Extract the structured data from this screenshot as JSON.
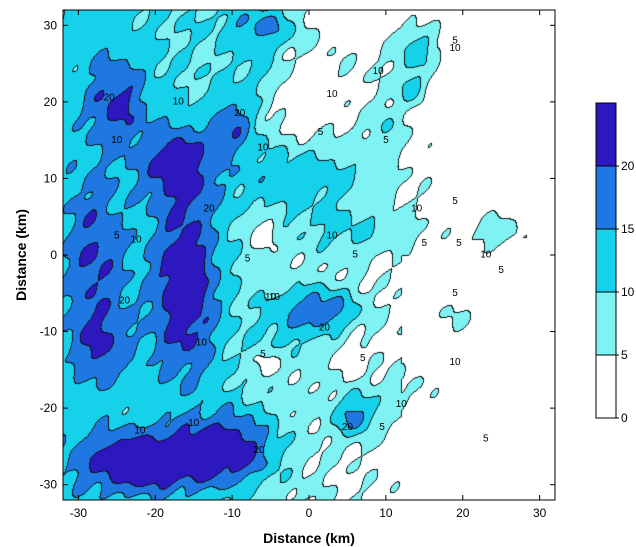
{
  "chart_data": {
    "type": "heatmap",
    "title": "",
    "xlabel": "Distance (km)",
    "ylabel": "Distance (km)",
    "xlim": [
      -32,
      32
    ],
    "ylim": [
      -32,
      32
    ],
    "x_ticks": [
      "-30",
      "-20",
      "-10",
      "0",
      "10",
      "20",
      "30"
    ],
    "y_ticks": [
      "-30",
      "-20",
      "-10",
      "0",
      "10",
      "20",
      "30"
    ],
    "x_tick_values": [
      -30,
      -20,
      -10,
      0,
      10,
      20,
      30
    ],
    "y_tick_values": [
      -30,
      -20,
      -10,
      0,
      10,
      20,
      30
    ],
    "grid": false,
    "legend_placement": "right",
    "levels": [
      0,
      5,
      10,
      15,
      20
    ],
    "level_labels": [
      "0",
      "5",
      "10",
      "15",
      "20"
    ],
    "colors": [
      "#ffffff",
      "#7ff2f4",
      "#16d1ea",
      "#1f78e2",
      "#2d17bf"
    ],
    "contour_labels": [
      {
        "text": "5",
        "x": -25,
        "y": 2.5
      },
      {
        "text": "10",
        "x": -22.5,
        "y": 2
      },
      {
        "text": "5",
        "x": -8,
        "y": -0.5
      },
      {
        "text": "10",
        "x": -4.5,
        "y": -5.5
      },
      {
        "text": "5",
        "x": -6,
        "y": -13
      },
      {
        "text": "10",
        "x": -25,
        "y": 15
      },
      {
        "text": "20",
        "x": -26,
        "y": 20.5
      },
      {
        "text": "10",
        "x": -17,
        "y": 20
      },
      {
        "text": "20",
        "x": -9,
        "y": 18.5
      },
      {
        "text": "10",
        "x": -6,
        "y": 14
      },
      {
        "text": "5",
        "x": 1.5,
        "y": 16
      },
      {
        "text": "10",
        "x": 3,
        "y": 21
      },
      {
        "text": "10",
        "x": 9,
        "y": 24
      },
      {
        "text": "5",
        "x": 10,
        "y": 15
      },
      {
        "text": "10",
        "x": 14,
        "y": 6
      },
      {
        "text": "5",
        "x": 19,
        "y": 7
      },
      {
        "text": "10",
        "x": 3,
        "y": 2.5
      },
      {
        "text": "5",
        "x": 6,
        "y": 0
      },
      {
        "text": "5",
        "x": 15,
        "y": 1.5
      },
      {
        "text": "10",
        "x": -5,
        "y": -5.5
      },
      {
        "text": "20",
        "x": 2,
        "y": -9.5
      },
      {
        "text": "5",
        "x": 7,
        "y": -13.5
      },
      {
        "text": "10",
        "x": 19,
        "y": -14
      },
      {
        "text": "10",
        "x": 12,
        "y": -19.5
      },
      {
        "text": "20",
        "x": 5,
        "y": -22.5
      },
      {
        "text": "5",
        "x": 9.5,
        "y": -22.5
      },
      {
        "text": "20",
        "x": -6.5,
        "y": -25.5
      },
      {
        "text": "10",
        "x": -22,
        "y": -23
      },
      {
        "text": "10",
        "x": -15,
        "y": -22
      },
      {
        "text": "20",
        "x": -24,
        "y": -6
      },
      {
        "text": "10",
        "x": -14,
        "y": -11.5
      },
      {
        "text": "20",
        "x": -13,
        "y": 6
      },
      {
        "text": "5",
        "x": 19.5,
        "y": 1.5
      },
      {
        "text": "10",
        "x": 23,
        "y": 0
      },
      {
        "text": "5",
        "x": 25,
        "y": -2
      },
      {
        "text": "5",
        "x": 23,
        "y": -24
      },
      {
        "text": "5",
        "x": 19,
        "y": -5
      },
      {
        "text": "5",
        "x": 19,
        "y": 28
      },
      {
        "text": "10",
        "x": 19,
        "y": 27
      }
    ]
  }
}
